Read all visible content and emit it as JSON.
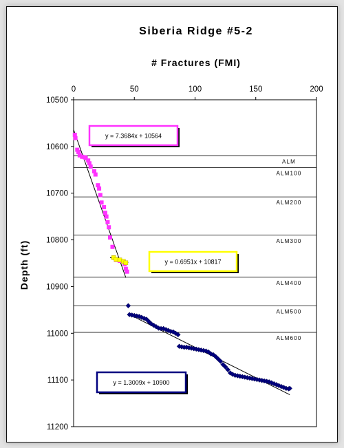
{
  "chart_data": {
    "type": "scatter",
    "title": "Siberia Ridge #5-2",
    "xlabel": "# Fractures (FMI)",
    "ylabel": "Depth (ft)",
    "xlim": [
      0,
      200
    ],
    "ylim": [
      10500,
      11200
    ],
    "y_inverted": true,
    "x_axis_position": "top",
    "xticks": [
      0,
      50,
      100,
      150,
      200
    ],
    "yticks": [
      10500,
      10600,
      10700,
      10800,
      10900,
      11000,
      11100,
      11200
    ],
    "legend": "none",
    "formation_tops": [
      {
        "name": "ALM",
        "depth": 10620
      },
      {
        "name": "ALM100",
        "depth": 10645
      },
      {
        "name": "ALM200",
        "depth": 10708
      },
      {
        "name": "ALM300",
        "depth": 10790
      },
      {
        "name": "ALM400",
        "depth": 10880
      },
      {
        "name": "ALM500",
        "depth": 10941
      },
      {
        "name": "ALM600",
        "depth": 10998
      }
    ],
    "series": [
      {
        "color": "#ff33ff",
        "marker": "square",
        "points": [
          [
            1,
            10575
          ],
          [
            1.5,
            10582
          ],
          [
            3,
            10607
          ],
          [
            4,
            10612
          ],
          [
            5,
            10619
          ],
          [
            7,
            10622
          ],
          [
            9,
            10623
          ],
          [
            10,
            10625
          ],
          [
            12,
            10630
          ],
          [
            13,
            10636
          ],
          [
            14,
            10643
          ],
          [
            17,
            10653
          ],
          [
            18,
            10660
          ],
          [
            20,
            10683
          ],
          [
            21,
            10690
          ],
          [
            22,
            10704
          ],
          [
            23,
            10720
          ],
          [
            25,
            10730
          ],
          [
            26,
            10742
          ],
          [
            27,
            10750
          ],
          [
            28,
            10762
          ],
          [
            29,
            10773
          ],
          [
            30,
            10795
          ],
          [
            32,
            10815
          ],
          [
            33,
            10838
          ],
          [
            35,
            10843
          ],
          [
            38,
            10845
          ],
          [
            42,
            10852
          ],
          [
            43,
            10862
          ],
          [
            44,
            10868
          ]
        ],
        "fit": {
          "slope": 7.3684,
          "intercept": 10564,
          "label": "y = 7.3684x + 10564",
          "x_range": [
            0,
            43
          ]
        }
      },
      {
        "color": "#ffff00",
        "marker": "square",
        "points": [
          [
            33,
            10838
          ],
          [
            35,
            10842
          ],
          [
            38,
            10843
          ],
          [
            41,
            10846
          ],
          [
            43,
            10849
          ]
        ],
        "fit": {
          "slope": 0.6951,
          "intercept": 10817,
          "label": "y = 0.6951x + 10817",
          "x_range": [
            30,
            45
          ]
        }
      },
      {
        "color": "#000080",
        "marker": "diamond",
        "points": [
          [
            45,
            10941
          ],
          [
            46,
            10960
          ],
          [
            48,
            10961
          ],
          [
            50,
            10962
          ],
          [
            52,
            10963
          ],
          [
            54,
            10964
          ],
          [
            56,
            10966
          ],
          [
            58,
            10968
          ],
          [
            60,
            10970
          ],
          [
            62,
            10975
          ],
          [
            64,
            10980
          ],
          [
            66,
            10983
          ],
          [
            68,
            10986
          ],
          [
            70,
            10989
          ],
          [
            72,
            10990
          ],
          [
            74,
            10990
          ],
          [
            76,
            10992
          ],
          [
            78,
            10994
          ],
          [
            80,
            10996
          ],
          [
            82,
            10997
          ],
          [
            84,
            11000
          ],
          [
            86,
            11003
          ],
          [
            87,
            11028
          ],
          [
            89,
            11029
          ],
          [
            91,
            11030
          ],
          [
            93,
            11030
          ],
          [
            95,
            11031
          ],
          [
            97,
            11032
          ],
          [
            99,
            11033
          ],
          [
            101,
            11034
          ],
          [
            103,
            11035
          ],
          [
            105,
            11036
          ],
          [
            107,
            11037
          ],
          [
            109,
            11038
          ],
          [
            111,
            11040
          ],
          [
            113,
            11044
          ],
          [
            115,
            11046
          ],
          [
            117,
            11050
          ],
          [
            119,
            11055
          ],
          [
            121,
            11060
          ],
          [
            123,
            11067
          ],
          [
            125,
            11072
          ],
          [
            127,
            11078
          ],
          [
            129,
            11085
          ],
          [
            131,
            11088
          ],
          [
            133,
            11090
          ],
          [
            135,
            11091
          ],
          [
            137,
            11092
          ],
          [
            139,
            11093
          ],
          [
            141,
            11094
          ],
          [
            143,
            11095
          ],
          [
            145,
            11096
          ],
          [
            147,
            11097
          ],
          [
            149,
            11098
          ],
          [
            151,
            11099
          ],
          [
            153,
            11100
          ],
          [
            155,
            11101
          ],
          [
            157,
            11102
          ],
          [
            159,
            11103
          ],
          [
            161,
            11104
          ],
          [
            163,
            11106
          ],
          [
            165,
            11108
          ],
          [
            167,
            11110
          ],
          [
            169,
            11112
          ],
          [
            171,
            11114
          ],
          [
            173,
            11116
          ],
          [
            175,
            11118
          ],
          [
            177,
            11119
          ],
          [
            178,
            11118
          ]
        ],
        "fit": {
          "slope": 1.3009,
          "intercept": 10900,
          "label": "y = 1.3009x + 10900",
          "x_range": [
            45,
            178
          ]
        }
      }
    ]
  }
}
